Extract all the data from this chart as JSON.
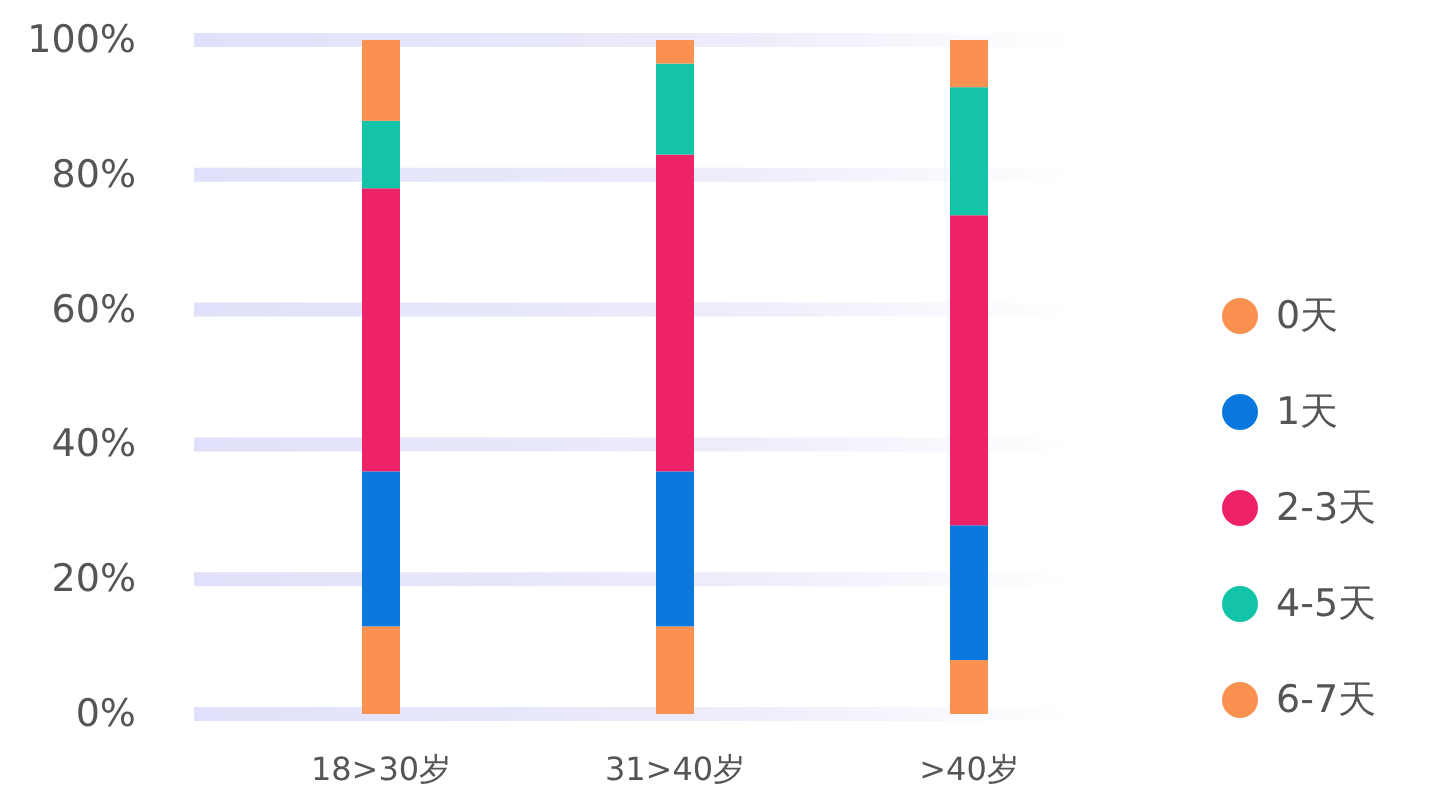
{
  "chart_data": {
    "type": "bar",
    "stacked": true,
    "categories": [
      "18>30岁",
      "31>40岁",
      ">40岁"
    ],
    "series": [
      {
        "name": "0天",
        "color": "#fa9150",
        "values": [
          13,
          13,
          8
        ]
      },
      {
        "name": "1天",
        "color": "#0a78dc",
        "values": [
          23,
          23,
          20
        ]
      },
      {
        "name": "2-3天",
        "color": "#ee2266",
        "values": [
          42,
          47,
          46
        ]
      },
      {
        "name": "4-5天",
        "color": "#14c4a8",
        "values": [
          10,
          13.5,
          19
        ]
      },
      {
        "name": "6-7天",
        "color": "#fa9150",
        "values": [
          12,
          3.5,
          7
        ]
      }
    ],
    "ylim": [
      0,
      100
    ],
    "yticks": [
      {
        "value": 0,
        "label": "0%"
      },
      {
        "value": 20,
        "label": "20%"
      },
      {
        "value": 40,
        "label": "40%"
      },
      {
        "value": 60,
        "label": "60%"
      },
      {
        "value": 80,
        "label": "80%"
      },
      {
        "value": 100,
        "label": "100%"
      }
    ],
    "grid": "y",
    "legend": "right"
  }
}
